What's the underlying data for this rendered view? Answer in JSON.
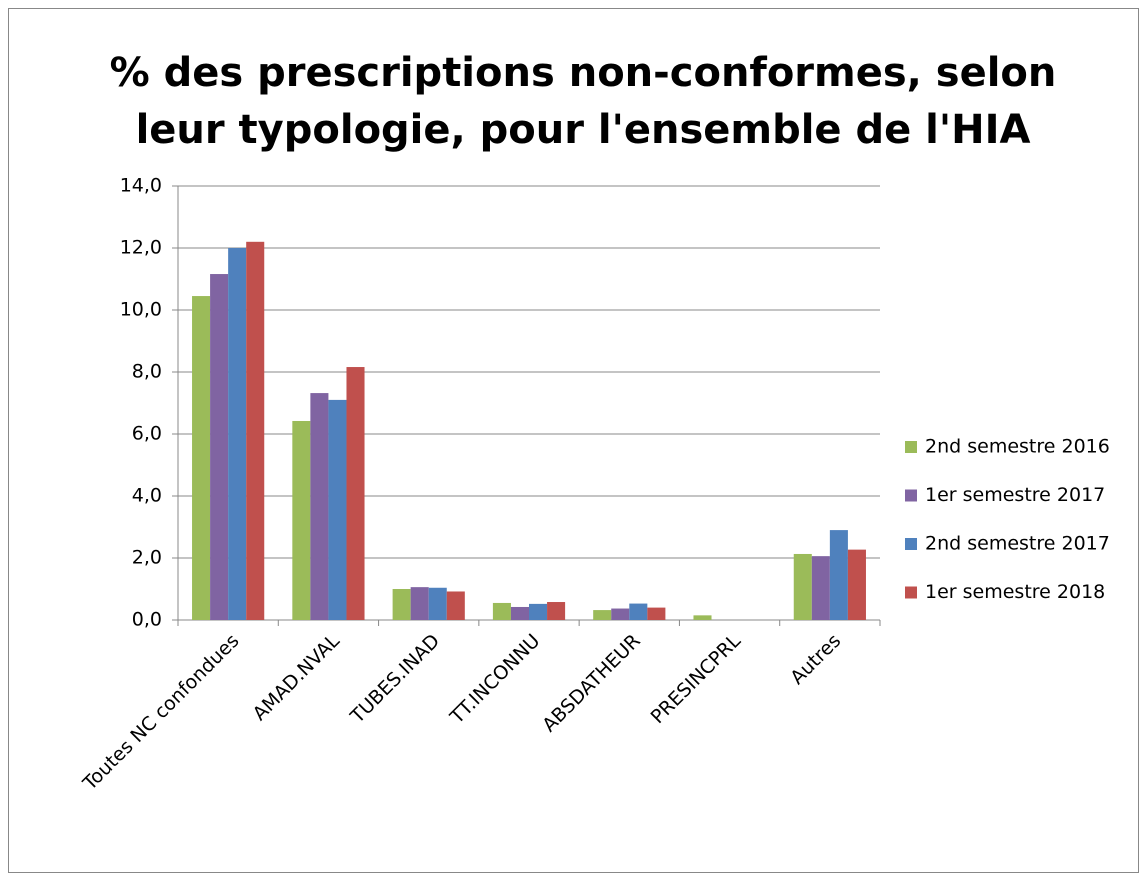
{
  "chart_data": {
    "type": "bar",
    "title": [
      "% des prescriptions non-conformes, selon",
      "leur typologie, pour l'ensemble de l'HIA"
    ],
    "categories": [
      "Toutes NC confondues",
      "AMAD.NVAL",
      "TUBES.INAD",
      "TT.INCONNU",
      "ABSDATHEUR",
      "PRESINCPRL",
      "Autres"
    ],
    "series": [
      {
        "name": "2nd semestre 2016",
        "color": "#9bbb59",
        "values": [
          10.45,
          6.42,
          1.0,
          0.55,
          0.32,
          0.15,
          2.13
        ]
      },
      {
        "name": "1er semestre 2017",
        "color": "#8064a2",
        "values": [
          11.16,
          7.32,
          1.06,
          0.42,
          0.37,
          0,
          2.06
        ]
      },
      {
        "name": "2nd semestre 2017",
        "color": "#4f81bd",
        "values": [
          12.0,
          7.1,
          1.04,
          0.52,
          0.53,
          0,
          2.9
        ]
      },
      {
        "name": "1er semestre 2018",
        "color": "#c0504d",
        "values": [
          12.2,
          8.16,
          0.92,
          0.58,
          0.4,
          0,
          2.27
        ]
      }
    ],
    "ylim": [
      0,
      14
    ],
    "yticks": [
      {
        "value": 0,
        "label": "0,0"
      },
      {
        "value": 2,
        "label": "2,0"
      },
      {
        "value": 4,
        "label": "4,0"
      },
      {
        "value": 6,
        "label": "6,0"
      },
      {
        "value": 8,
        "label": "8,0"
      },
      {
        "value": 10,
        "label": "10,0"
      },
      {
        "value": 12,
        "label": "12,0"
      },
      {
        "value": 14,
        "label": "14,0"
      }
    ],
    "grid": true,
    "legend": "right"
  }
}
